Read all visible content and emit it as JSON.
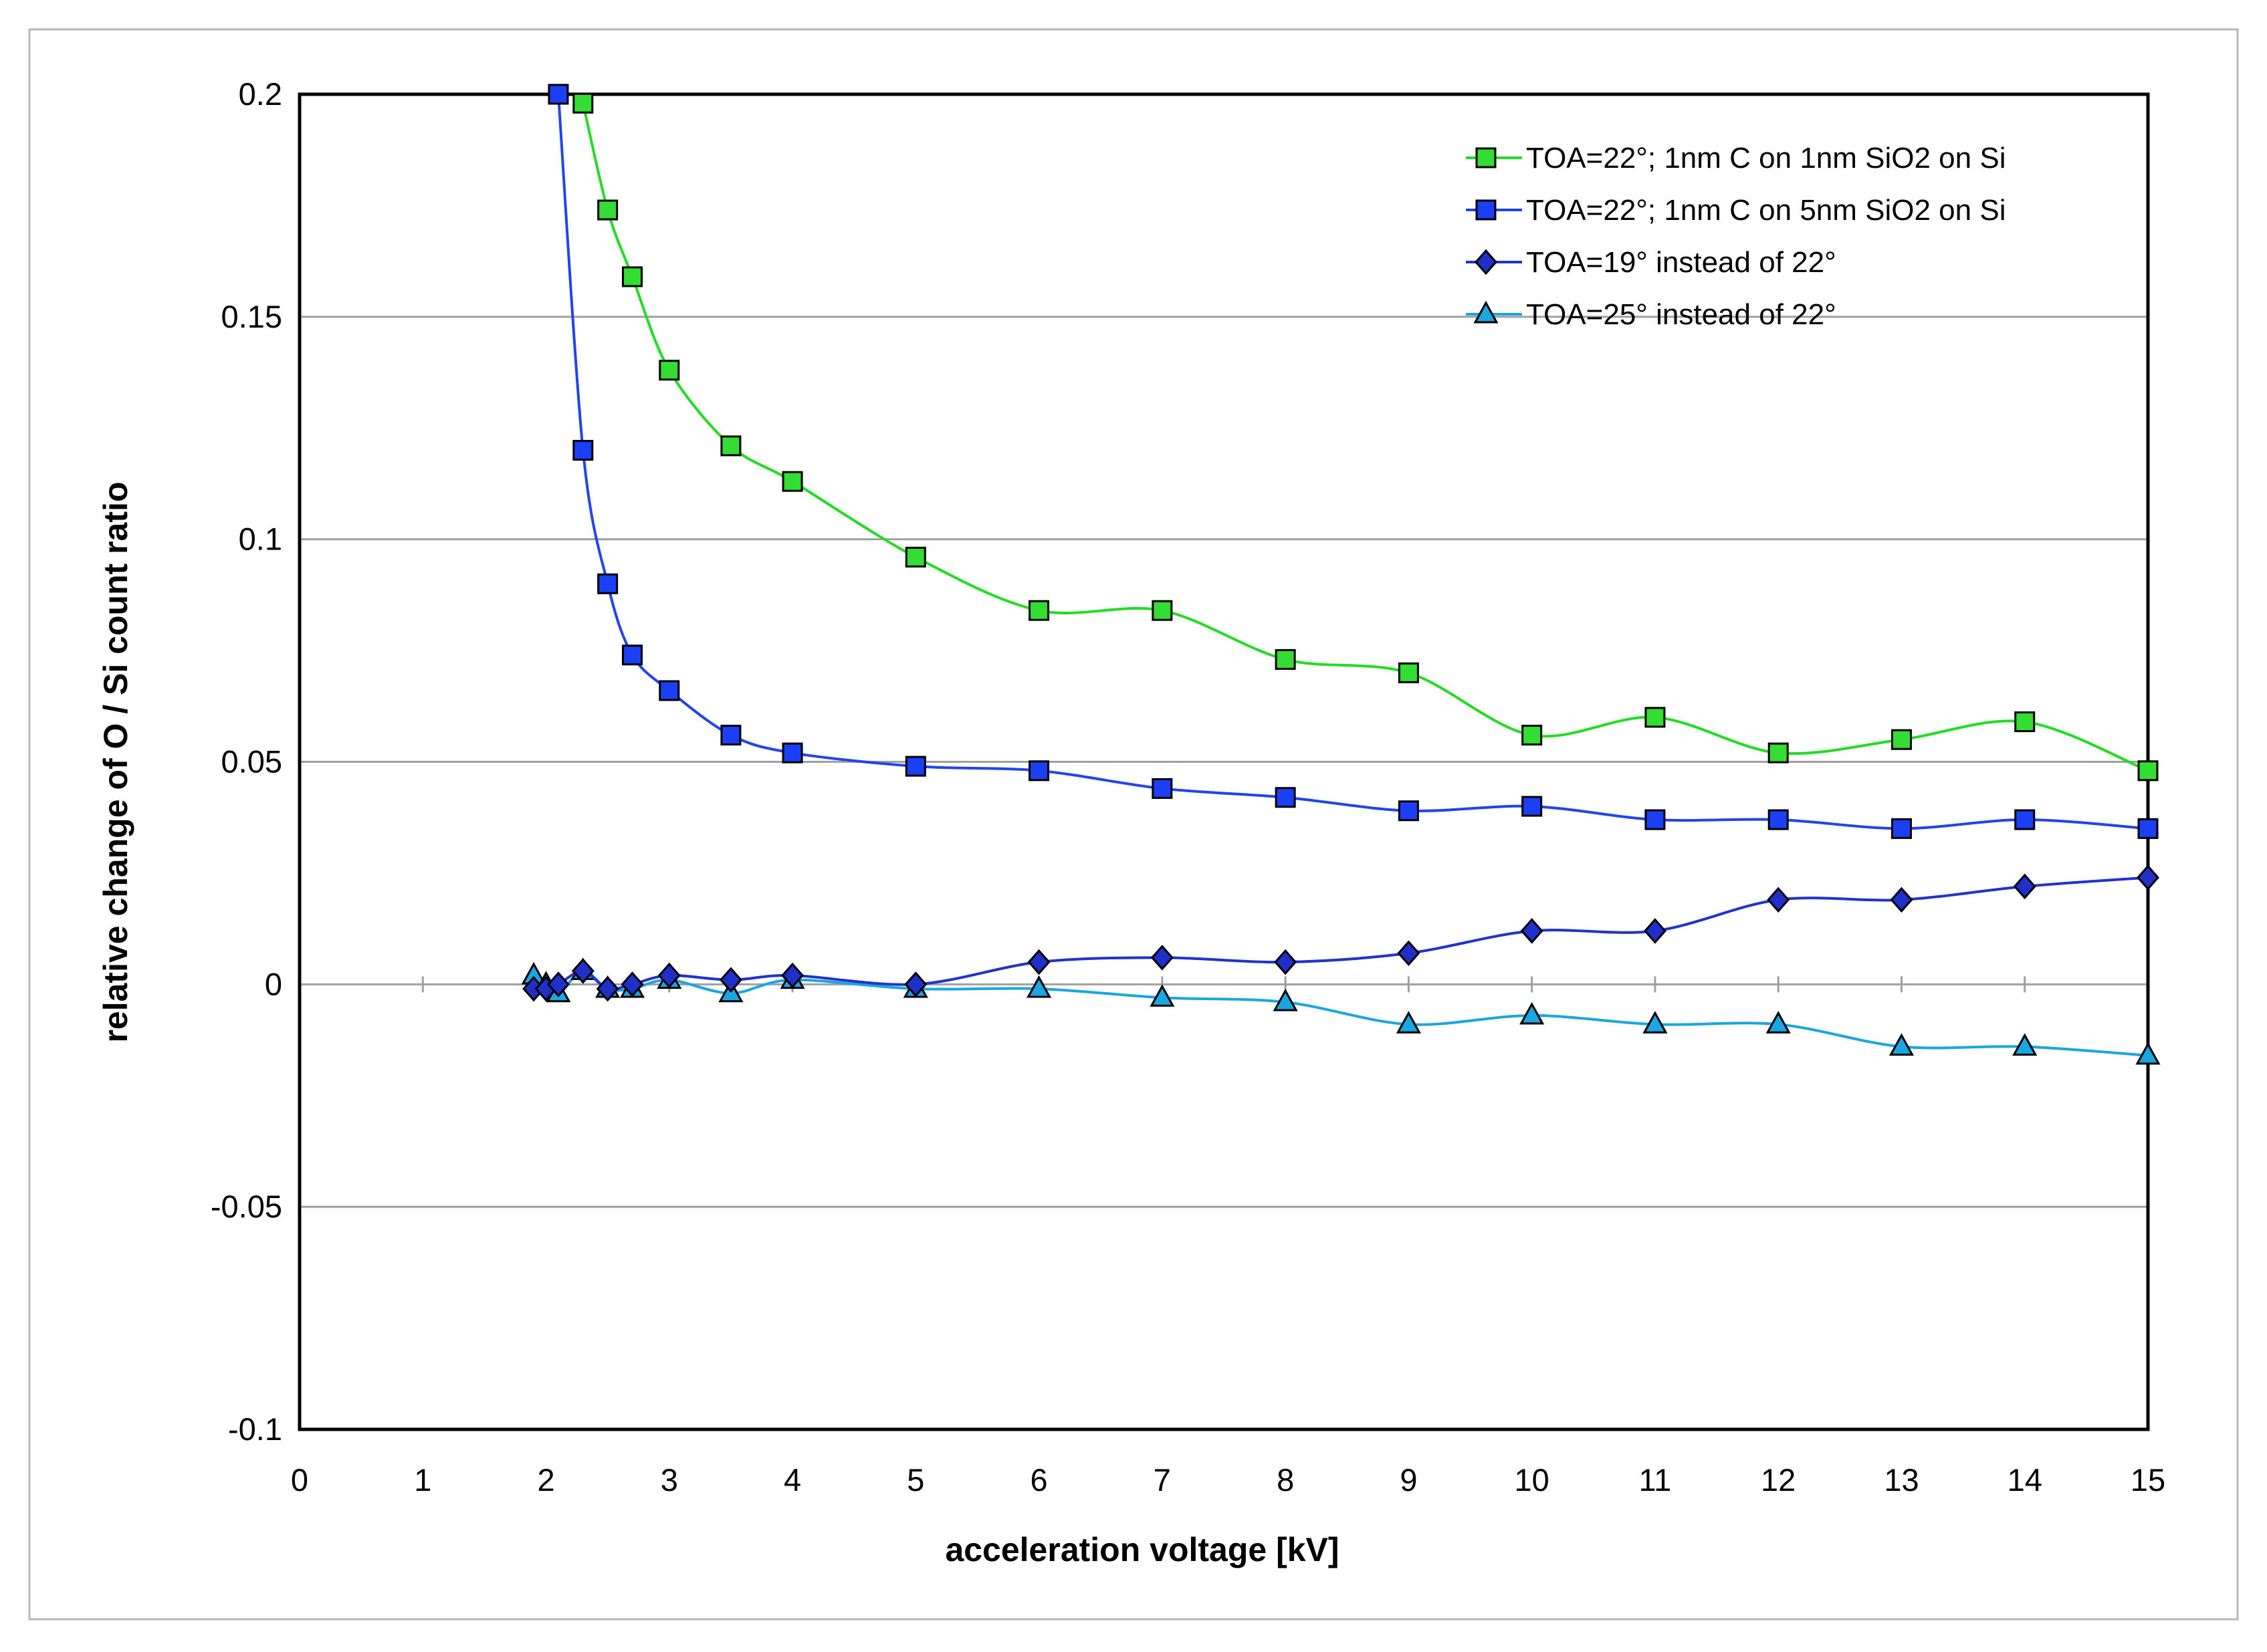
{
  "chart_data": {
    "type": "line",
    "title": "",
    "xlabel": "acceleration voltage [kV]",
    "ylabel": "relative change of O / Si count ratio",
    "xlim": [
      0,
      15
    ],
    "ylim": [
      -0.1,
      0.2
    ],
    "x_ticks": [
      "0",
      "1",
      "2",
      "3",
      "4",
      "5",
      "6",
      "7",
      "8",
      "9",
      "10",
      "11",
      "12",
      "13",
      "14",
      "15"
    ],
    "x_tick_values": [
      0,
      1,
      2,
      3,
      4,
      5,
      6,
      7,
      8,
      9,
      10,
      11,
      12,
      13,
      14,
      15
    ],
    "y_ticks": [
      "0.2",
      "0.15",
      "0.1",
      "0.05",
      "0",
      "-0.05",
      "-0.1"
    ],
    "y_tick_values": [
      0.2,
      0.15,
      0.1,
      0.05,
      0,
      -0.05,
      -0.1
    ],
    "grid": true,
    "legend_position": "top-right",
    "series": [
      {
        "name": "TOA=22°; 1nm C on 1nm SiO2 on Si",
        "marker": "square",
        "line_color": "#22dd22",
        "marker_fill": "#33dd33",
        "x": [
          2.3,
          2.5,
          2.7,
          3,
          3.5,
          4,
          5,
          6,
          7,
          8,
          9,
          10,
          11,
          12,
          13,
          14,
          15
        ],
        "y": [
          0.198,
          0.174,
          0.159,
          0.138,
          0.121,
          0.113,
          0.096,
          0.084,
          0.084,
          0.073,
          0.07,
          0.056,
          0.06,
          0.052,
          0.055,
          0.059,
          0.048
        ]
      },
      {
        "name": "TOA=22°; 1nm C on 5nm SiO2 on Si",
        "marker": "square",
        "line_color": "#2244ee",
        "marker_fill": "#1a3ff5",
        "x": [
          2.1,
          2.3,
          2.5,
          2.7,
          3,
          3.5,
          4,
          5,
          6,
          7,
          8,
          9,
          10,
          11,
          12,
          13,
          14,
          15
        ],
        "y": [
          0.2,
          0.12,
          0.09,
          0.074,
          0.066,
          0.056,
          0.052,
          0.049,
          0.048,
          0.044,
          0.042,
          0.039,
          0.04,
          0.037,
          0.037,
          0.035,
          0.037,
          0.035
        ]
      },
      {
        "name": "TOA=19° instead of 22°",
        "marker": "diamond",
        "line_color": "#2233cc",
        "marker_fill": "#1f2fc8",
        "x": [
          1.9,
          2,
          2.1,
          2.3,
          2.5,
          2.7,
          3,
          3.5,
          4,
          5,
          6,
          7,
          8,
          9,
          10,
          11,
          12,
          13,
          14,
          15
        ],
        "y": [
          -0.001,
          -0.001,
          0.0,
          0.003,
          -0.001,
          0.0,
          0.002,
          0.001,
          0.002,
          0.0,
          0.005,
          0.006,
          0.005,
          0.007,
          0.012,
          0.012,
          0.019,
          0.019,
          0.022,
          0.024
        ]
      },
      {
        "name": "TOA=25° instead of 22°",
        "marker": "triangle",
        "line_color": "#1aa6e0",
        "marker_fill": "#1aa6e0",
        "x": [
          1.9,
          2,
          2.1,
          2.3,
          2.5,
          2.7,
          3,
          3.5,
          4,
          5,
          6,
          7,
          8,
          9,
          10,
          11,
          12,
          13,
          14,
          15
        ],
        "y": [
          0.002,
          0.0,
          -0.002,
          0.003,
          -0.001,
          -0.001,
          0.001,
          -0.002,
          0.001,
          -0.001,
          -0.001,
          -0.003,
          -0.004,
          -0.009,
          -0.007,
          -0.009,
          -0.009,
          -0.014,
          -0.014,
          -0.016
        ]
      }
    ]
  }
}
